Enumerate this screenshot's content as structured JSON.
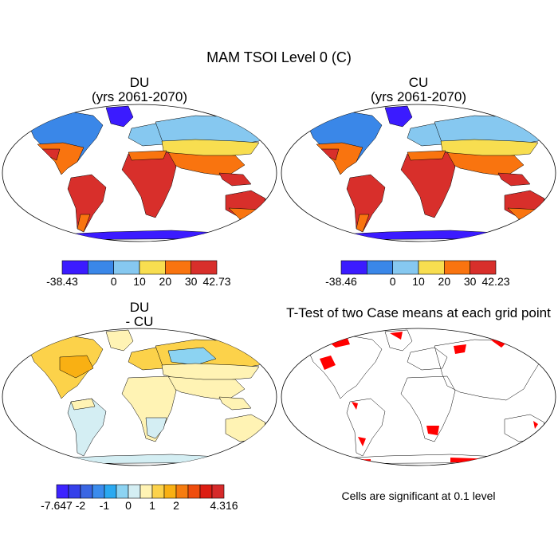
{
  "title": "MAM TSOI Level 0 (C)",
  "panels": [
    {
      "id": "du",
      "title": "DU",
      "subtitle": "(yrs 2061-2070)"
    },
    {
      "id": "cu",
      "title": "CU",
      "subtitle": "(yrs 2061-2070)"
    },
    {
      "id": "diff",
      "title": "DU",
      "subtitle": "- CU"
    },
    {
      "id": "ttest",
      "title": "T-Test of two Case means at each grid point",
      "subtitle": ""
    }
  ],
  "colorbars": [
    {
      "id": "du-bar",
      "colors": [
        "#3b1bff",
        "#3a87e8",
        "#86c8f0",
        "#f8de50",
        "#f9740f",
        "#d82f2b"
      ],
      "labels": [
        "-38.43",
        "0",
        "10",
        "20",
        "30",
        "42.73"
      ],
      "edges": [
        0,
        2,
        3,
        4,
        5,
        6
      ]
    },
    {
      "id": "cu-bar",
      "colors": [
        "#3b1bff",
        "#3a87e8",
        "#86c8f0",
        "#f8de50",
        "#f9740f",
        "#d82f2b"
      ],
      "labels": [
        "-38.46",
        "0",
        "10",
        "20",
        "30",
        "42.23"
      ],
      "edges": [
        0,
        2,
        3,
        4,
        5,
        6
      ]
    },
    {
      "id": "diff-bar",
      "colors": [
        "#3d24ff",
        "#3540ea",
        "#3a66e3",
        "#3b8ced",
        "#2aa9f1",
        "#8cd3f2",
        "#d4eef3",
        "#fff3b4",
        "#fcd24a",
        "#f9b013",
        "#f67c0f",
        "#ef4d0d",
        "#dd1d12",
        "#d62a2a"
      ],
      "labels": [
        "-7.647",
        "-2",
        "-1",
        "0",
        "1",
        "2",
        "4.316"
      ],
      "edges": [
        0,
        2,
        4,
        6,
        8,
        10,
        14
      ]
    }
  ],
  "significance_note": "Cells are significant at 0.1 level"
}
